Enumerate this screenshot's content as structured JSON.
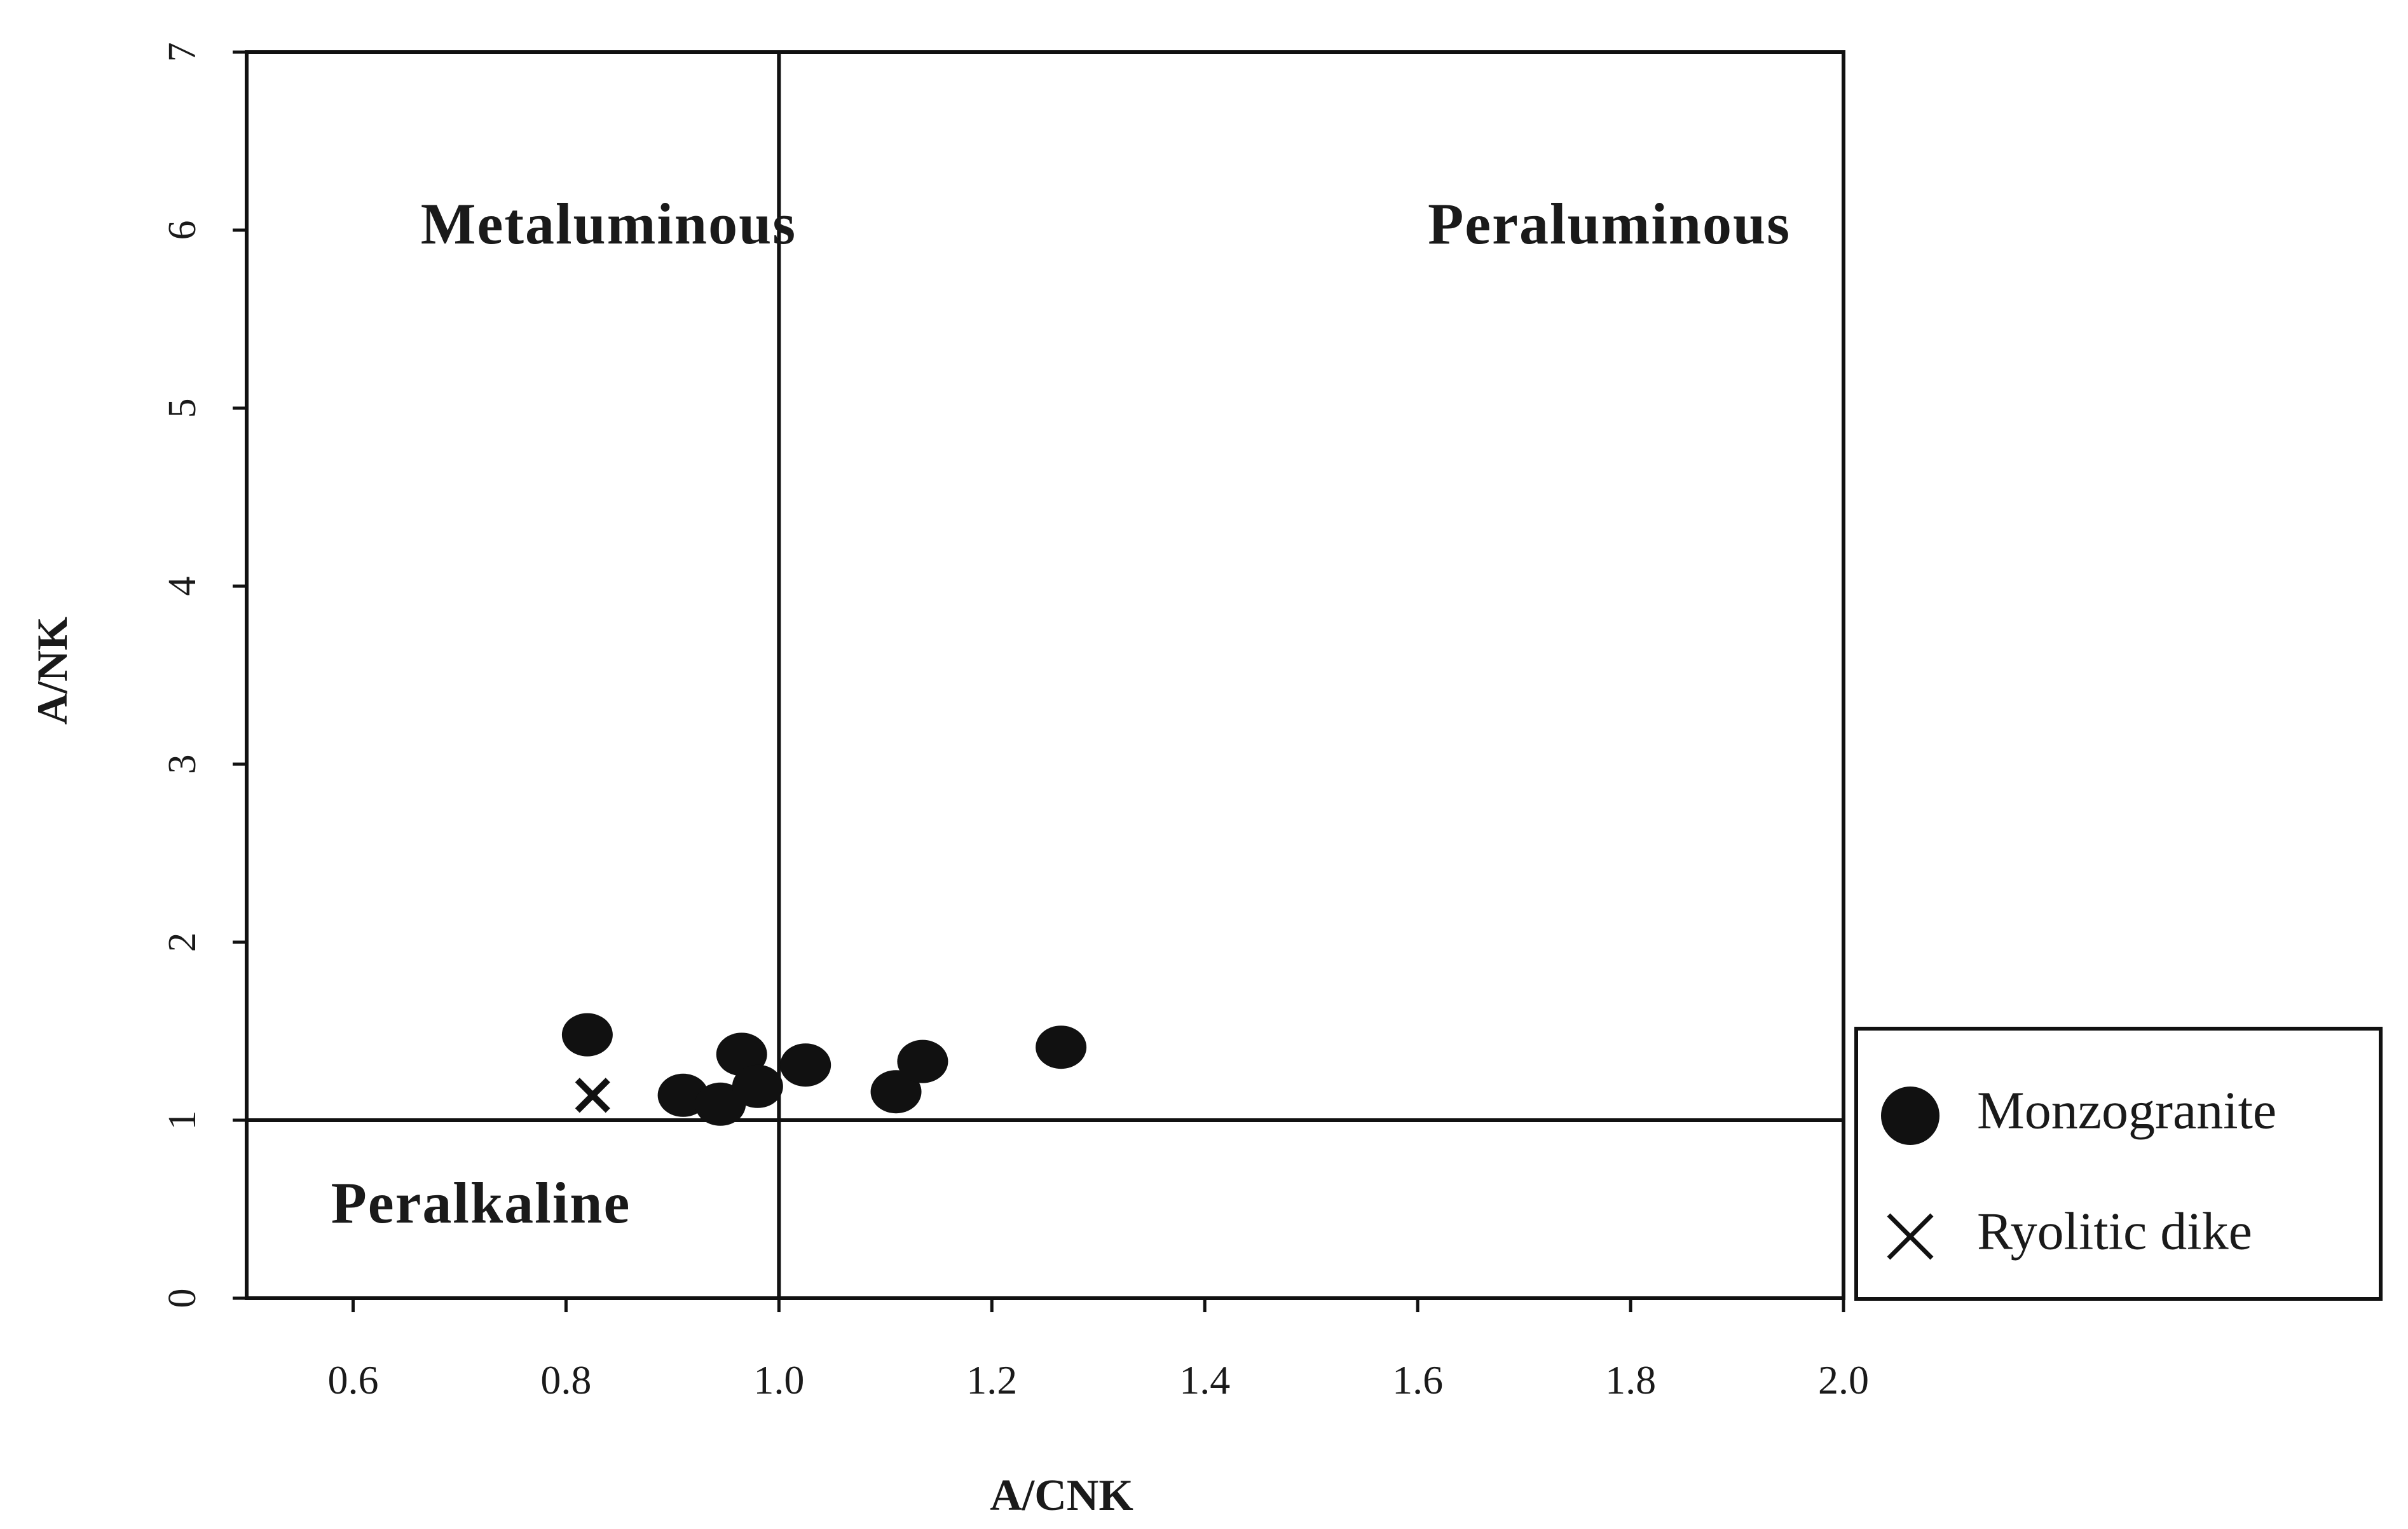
{
  "chart_data": {
    "type": "scatter",
    "title": "",
    "xlabel": "A/CNK",
    "ylabel": "A/NK",
    "xlim": [
      0.5,
      2.0
    ],
    "ylim": [
      0,
      7
    ],
    "xticks": [
      0.6,
      0.8,
      1.0,
      1.2,
      1.4,
      1.6,
      1.8,
      2.0
    ],
    "xtick_labels": [
      "0.6",
      "0.8",
      "1.0",
      "1.2",
      "1.4",
      "1.6",
      "1.8",
      "2.0"
    ],
    "yticks": [
      0,
      1,
      2,
      3,
      4,
      5,
      6,
      7
    ],
    "ytick_labels": [
      "0",
      "1",
      "2",
      "3",
      "4",
      "5",
      "6",
      "7"
    ],
    "grid": false,
    "divider_lines": {
      "x": 1.0,
      "y": 1.0
    },
    "regions": [
      {
        "label": "Metaluminous",
        "x": 0.84,
        "y": 6.0
      },
      {
        "label": "Peraluminous",
        "x": 1.78,
        "y": 6.0
      },
      {
        "label": "Peralkaline",
        "x": 0.72,
        "y": 0.5
      }
    ],
    "legend_position": "right, outside plot",
    "series": [
      {
        "name": "Monzogranite",
        "marker": "circle",
        "color": "#111111",
        "points": [
          {
            "x": 0.82,
            "y": 1.48
          },
          {
            "x": 0.91,
            "y": 1.14
          },
          {
            "x": 0.945,
            "y": 1.09
          },
          {
            "x": 0.965,
            "y": 1.37
          },
          {
            "x": 0.98,
            "y": 1.19
          },
          {
            "x": 1.025,
            "y": 1.31
          },
          {
            "x": 1.11,
            "y": 1.16
          },
          {
            "x": 1.135,
            "y": 1.33
          },
          {
            "x": 1.265,
            "y": 1.41
          }
        ]
      },
      {
        "name": "Ryolitic dike",
        "marker": "x",
        "color": "#111111",
        "points": [
          {
            "x": 0.825,
            "y": 1.14
          }
        ]
      }
    ]
  }
}
